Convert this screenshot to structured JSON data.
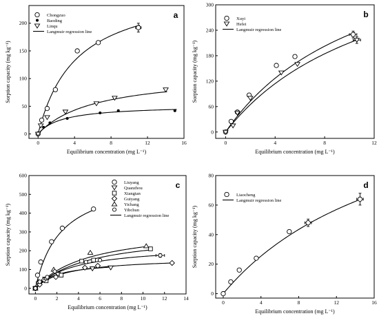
{
  "chart_data": [
    {
      "id": "a",
      "type": "scatter",
      "panel_label": "a",
      "xlabel": "Equilibrium concentration (mg L⁻¹)",
      "ylabel": "Sorption capacity (mg kg⁻¹)",
      "xlim": [
        -1,
        16
      ],
      "ylim": [
        -8,
        232
      ],
      "xticks": [
        0,
        4,
        8,
        12,
        16
      ],
      "yticks": [
        0,
        50,
        100,
        150,
        200
      ],
      "legend_position": "top-left",
      "series": [
        {
          "name": "Chongzuo",
          "marker": "circle",
          "x": [
            0,
            0.4,
            1.0,
            1.9,
            4.3,
            6.6,
            11.0
          ],
          "y": [
            0,
            25,
            46,
            80,
            150,
            165,
            192
          ],
          "xerr": [
            0,
            0,
            0,
            0,
            0,
            0,
            0.3
          ],
          "yerr": [
            0,
            0,
            0,
            0,
            0,
            0,
            8
          ],
          "fit": {
            "qmax": 270,
            "K": 0.24
          }
        },
        {
          "name": "Baoding",
          "marker": "dot",
          "x": [
            0,
            0.6,
            1.3,
            3.2,
            6.8,
            8.8,
            15.0
          ],
          "y": [
            0,
            12,
            20,
            28,
            38,
            42,
            42
          ],
          "fit": {
            "qmax": 52,
            "K": 0.38
          }
        },
        {
          "name": "Linqu",
          "marker": "triangle-down",
          "x": [
            0,
            0.3,
            1.0,
            3.0,
            6.4,
            8.4,
            14.0
          ],
          "y": [
            0,
            15,
            30,
            40,
            55,
            65,
            80
          ],
          "fit": {
            "qmax": 110,
            "K": 0.16
          }
        }
      ],
      "legend_fit_label": "Langmuir regression line"
    },
    {
      "id": "b",
      "type": "scatter",
      "panel_label": "b",
      "xlabel": "Equilibrium concentration (mg L⁻¹)",
      "ylabel": "Sorption capacity (mg kg⁻¹)",
      "xlim": [
        -0.8,
        12
      ],
      "ylim": [
        -15,
        300
      ],
      "xticks": [
        0,
        4,
        8,
        12
      ],
      "yticks": [
        0,
        60,
        120,
        180,
        240,
        300
      ],
      "legend_position": "top-left",
      "series": [
        {
          "name": "Xuyi",
          "marker": "circle",
          "x": [
            0,
            0.45,
            0.95,
            1.9,
            4.1,
            5.6,
            10.3
          ],
          "y": [
            0,
            25,
            47,
            87,
            157,
            178,
            230
          ],
          "xerr": [
            0,
            0,
            0,
            0,
            0,
            0,
            0.3
          ],
          "yerr": [
            0,
            0,
            0,
            0,
            0,
            0,
            8
          ],
          "fit": {
            "qmax": 500,
            "K": 0.085
          }
        },
        {
          "name": "Hefei",
          "marker": "triangle-down",
          "x": [
            0,
            0.6,
            0.95,
            2.0,
            4.5,
            5.8,
            10.6
          ],
          "y": [
            0,
            15,
            45,
            80,
            140,
            160,
            217
          ],
          "xerr": [
            0,
            0,
            0,
            0,
            0,
            0,
            0.3
          ],
          "yerr": [
            0,
            0,
            0,
            0,
            0,
            0,
            8
          ],
          "fit": {
            "qmax": 480,
            "K": 0.078
          }
        }
      ],
      "legend_fit_label": "Langmuir regression line"
    },
    {
      "id": "c",
      "type": "scatter",
      "panel_label": "c",
      "xlabel": "Equilibrium concentration (mg L⁻¹)",
      "ylabel": "Sorption capacity (mg kg⁻¹)",
      "xlim": [
        -0.6,
        14
      ],
      "ylim": [
        -30,
        600
      ],
      "xticks": [
        0,
        2,
        4,
        6,
        8,
        10,
        12,
        14
      ],
      "yticks": [
        0,
        100,
        200,
        300,
        400,
        500,
        600
      ],
      "legend_position": "top-right",
      "series": [
        {
          "name": "Liuyang",
          "marker": "circle",
          "x": [
            0,
            0.2,
            0.5,
            1.5,
            2.5,
            5.4
          ],
          "y": [
            0,
            70,
            140,
            248,
            320,
            422
          ],
          "fit": {
            "qmax": 600,
            "K": 0.42
          }
        },
        {
          "name": "Quanzhou",
          "marker": "triangle-down",
          "x": [
            0,
            0.3,
            0.9,
            2.1,
            5.3,
            7.0
          ],
          "y": [
            0,
            25,
            50,
            75,
            105,
            110
          ],
          "fit": {
            "qmax": 145,
            "K": 0.5
          }
        },
        {
          "name": "Xiangtan",
          "marker": "square",
          "x": [
            0,
            0.4,
            1.0,
            2.4,
            4.3,
            5.4,
            10.7
          ],
          "y": [
            0,
            30,
            40,
            70,
            145,
            150,
            210
          ],
          "fit": {
            "qmax": 300,
            "K": 0.2
          }
        },
        {
          "name": "Guiyang",
          "marker": "diamond",
          "x": [
            0,
            0.4,
            0.8,
            1.9,
            4.6,
            5.8,
            12.7
          ],
          "y": [
            0,
            20,
            45,
            60,
            110,
            120,
            135
          ],
          "fit": {
            "qmax": 165,
            "K": 0.35
          }
        },
        {
          "name": "Yichang",
          "marker": "triangle-up",
          "x": [
            0,
            0.3,
            1.0,
            1.7,
            5.1,
            10.3
          ],
          "y": [
            0,
            35,
            55,
            100,
            190,
            225
          ],
          "fit": {
            "qmax": 330,
            "K": 0.2
          }
        },
        {
          "name": "Yibchun",
          "marker": "circle-small",
          "x": [
            0,
            0.4,
            1.1,
            1.8,
            4.7,
            6.0,
            11.6
          ],
          "y": [
            0,
            35,
            60,
            90,
            140,
            150,
            175
          ],
          "xerr": [
            0,
            0,
            0,
            0,
            0,
            0,
            0.4
          ],
          "yerr": [
            0,
            0,
            0,
            0,
            0,
            0,
            10
          ],
          "fit": {
            "qmax": 230,
            "K": 0.28
          }
        }
      ],
      "legend_fit_label": "Langmuir regression line"
    },
    {
      "id": "d",
      "type": "scatter",
      "panel_label": "d",
      "xlabel": "Equilibrium concentration (mg L⁻¹)",
      "ylabel": "Sorption capacity (mg kg⁻¹)",
      "xlim": [
        -0.8,
        16
      ],
      "ylim": [
        -3,
        80
      ],
      "xticks": [
        0,
        4,
        8,
        12,
        16
      ],
      "yticks": [
        0,
        20,
        40,
        60,
        80
      ],
      "legend_position": "top-left",
      "series": [
        {
          "name": "Liaocheng",
          "marker": "circle",
          "x": [
            0,
            0.8,
            1.7,
            3.5,
            7.0,
            9.0,
            14.5
          ],
          "y": [
            0,
            8,
            16,
            24,
            42,
            48,
            64
          ],
          "xerr": [
            0,
            0,
            0,
            0,
            0,
            0.35,
            0.35
          ],
          "yerr": [
            0,
            0,
            0,
            0,
            0,
            2.5,
            4
          ],
          "fit": {
            "qmax": 150,
            "K": 0.051
          }
        }
      ],
      "legend_fit_label": "Langmuir regression line"
    }
  ]
}
